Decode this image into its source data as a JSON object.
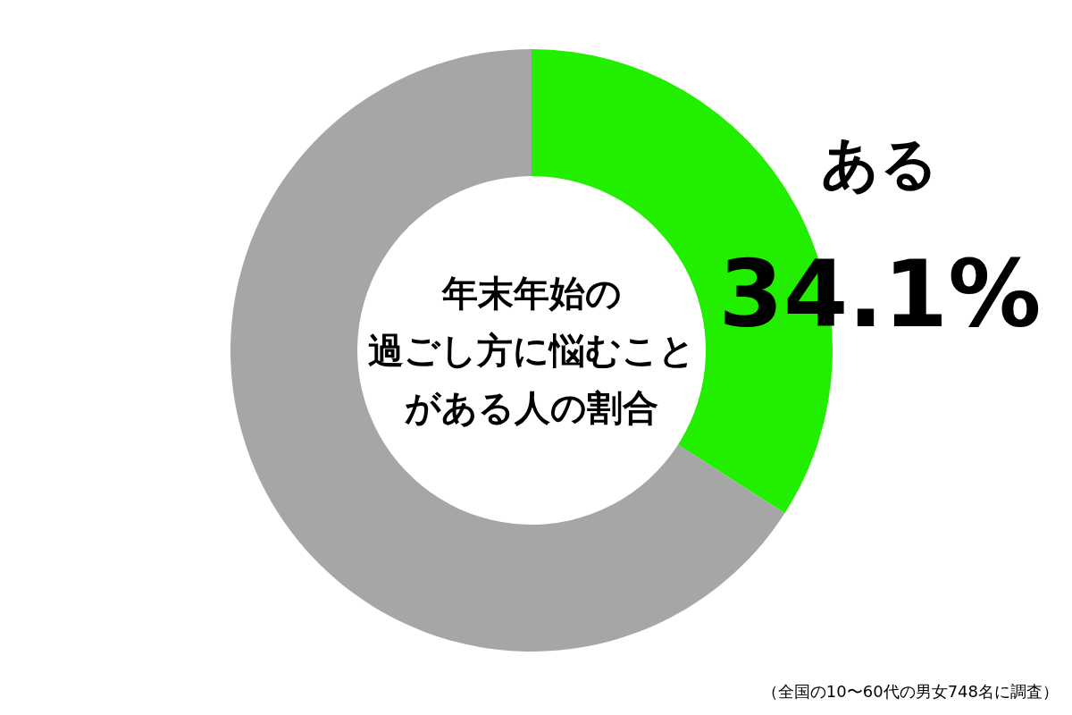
{
  "chart_data": {
    "type": "donut",
    "title": "年末年始の過ごし方に悩むことがある人の割合",
    "categories": [
      "ある",
      null
    ],
    "values": [
      34.1,
      65.9
    ],
    "value_labels": [
      "34.1%",
      null
    ],
    "colors": [
      "#22ee00",
      "#a6a6a6"
    ],
    "legend": false,
    "annotations": [
      "（全国の10〜60代の男女748名に調査）"
    ]
  }
}
